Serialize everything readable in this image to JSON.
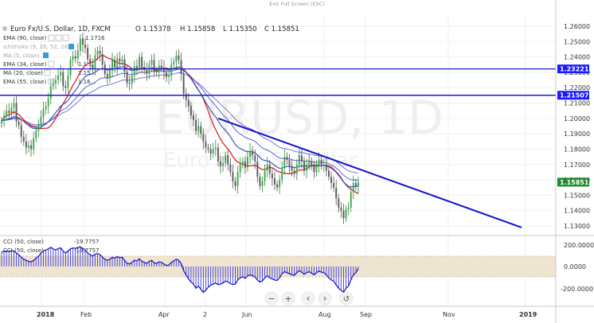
{
  "window": {
    "exit_fullscreen_label": "Exit Full Screen (ESC)"
  },
  "header": {
    "symbol": "Euro Fx/U.S. Dollar, 1D, FXCM",
    "ohlc": {
      "open": "O 1.15378",
      "high": "H 1.15858",
      "low": "L 1.15350",
      "close": "C 1.15851"
    }
  },
  "indicators": [
    {
      "label": "EMA (90, close)",
      "value": "1.1716"
    },
    {
      "label": "Ichimoku (9, 26, 52, 26)",
      "value": ""
    },
    {
      "label": "MA (5, close)",
      "value": ""
    },
    {
      "label": "EMA (34, close)",
      "value": "1.1..."
    },
    {
      "label": "MA (20, close)",
      "value": "1.15..."
    },
    {
      "label": "EMA (55, close)",
      "value": "1.16..."
    }
  ],
  "watermark": {
    "symbol": "EURUSD, 1D",
    "name": "Euro Fx/U.S. Dollar"
  },
  "price_axis": {
    "ticks": [
      "1.26000",
      "1.25000",
      "1.24000",
      "1.23000",
      "1.22000",
      "1.21000",
      "1.20000",
      "1.19000",
      "1.18000",
      "1.17000",
      "1.16000",
      "1.15000",
      "1.14000",
      "1.13000"
    ],
    "badges": [
      {
        "text": "1.23221",
        "color": "#1a1aff"
      },
      {
        "text": "1.21507",
        "color": "#1a1aff"
      },
      {
        "text": "1.15851",
        "color": "#1c8c2e"
      }
    ]
  },
  "cci_panel": {
    "legend": [
      {
        "label": "CCI (50, close)",
        "value": "-19.7757"
      },
      {
        "label": "CCI (50, close)",
        "value": "-19.7757"
      }
    ],
    "ticks": [
      "200.0000",
      "0.0000",
      "-200.0000"
    ]
  },
  "time_axis": {
    "labels": [
      "2018",
      "Feb",
      "Apr",
      "2",
      "Jun",
      "Aug",
      "Sep",
      "Nov",
      "2019"
    ]
  },
  "nav": {
    "zoom_out": "−",
    "zoom_in": "+",
    "prev": "‹",
    "next": "›",
    "reset": "↺"
  },
  "chart_data": {
    "type": "candlestick",
    "title": "Euro Fx/U.S. Dollar, 1D, FXCM",
    "ylim": [
      1.125,
      1.265
    ],
    "horizontal_lines": [
      1.23221,
      1.21507
    ],
    "trendline": {
      "from": {
        "date": "2018-04-24",
        "price": 1.2
      },
      "to": {
        "date": "2018-10-26",
        "price": 1.129
      }
    },
    "closes": [
      1.1985,
      1.202,
      1.205,
      1.2035,
      1.207,
      1.21,
      1.198,
      1.1955,
      1.188,
      1.185,
      1.181,
      1.1825,
      1.18,
      1.187,
      1.192,
      1.196,
      1.201,
      1.206,
      1.208,
      1.213,
      1.221,
      1.223,
      1.225,
      1.228,
      1.23,
      1.221,
      1.22,
      1.228,
      1.238,
      1.2405,
      1.239,
      1.244,
      1.252,
      1.248,
      1.246,
      1.2385,
      1.235,
      1.2325,
      1.241,
      1.244,
      1.242,
      1.235,
      1.229,
      1.226,
      1.231,
      1.238,
      1.233,
      1.239,
      1.237,
      1.2385,
      1.2305,
      1.223,
      1.2225,
      1.228,
      1.234,
      1.232,
      1.24,
      1.2335,
      1.2315,
      1.229,
      1.235,
      1.238,
      1.231,
      1.23,
      1.2345,
      1.233,
      1.23,
      1.227,
      1.228,
      1.235,
      1.237,
      1.241,
      1.238,
      1.229,
      1.216,
      1.212,
      1.208,
      1.202,
      1.199,
      1.192,
      1.195,
      1.19,
      1.185,
      1.181,
      1.18,
      1.177,
      1.18,
      1.181,
      1.172,
      1.169,
      1.171,
      1.176,
      1.17,
      1.165,
      1.159,
      1.156,
      1.165,
      1.17,
      1.172,
      1.168,
      1.175,
      1.179,
      1.176,
      1.172,
      1.162,
      1.156,
      1.159,
      1.166,
      1.17,
      1.164,
      1.161,
      1.157,
      1.155,
      1.16,
      1.168,
      1.175,
      1.173,
      1.169,
      1.166,
      1.164,
      1.17,
      1.176,
      1.172,
      1.166,
      1.17,
      1.172,
      1.169,
      1.165,
      1.169,
      1.173,
      1.17,
      1.17,
      1.166,
      1.162,
      1.158,
      1.155,
      1.148,
      1.142,
      1.14,
      1.135,
      1.141,
      1.142,
      1.152,
      1.158,
      1.156,
      1.1585
    ],
    "cci": [
      140,
      145,
      150,
      148,
      152,
      150,
      130,
      115,
      90,
      70,
      60,
      50,
      45,
      60,
      80,
      100,
      130,
      150,
      160,
      170,
      185,
      170,
      160,
      175,
      180,
      150,
      130,
      150,
      170,
      180,
      175,
      185,
      190,
      175,
      160,
      130,
      115,
      100,
      120,
      125,
      115,
      90,
      70,
      60,
      70,
      90,
      80,
      95,
      85,
      90,
      60,
      30,
      25,
      40,
      60,
      55,
      75,
      50,
      40,
      30,
      50,
      60,
      35,
      30,
      45,
      40,
      25,
      10,
      15,
      40,
      55,
      70,
      60,
      30,
      -40,
      -80,
      -120,
      -150,
      -170,
      -210,
      -190,
      -220,
      -250,
      -230,
      -200,
      -180,
      -170,
      -160,
      -175,
      -170,
      -160,
      -140,
      -150,
      -165,
      -175,
      -170,
      -130,
      -110,
      -100,
      -115,
      -90,
      -80,
      -90,
      -100,
      -130,
      -150,
      -140,
      -110,
      -90,
      -110,
      -120,
      -130,
      -135,
      -110,
      -70,
      -50,
      -60,
      -70,
      -80,
      -85,
      -60,
      -40,
      -55,
      -75,
      -60,
      -50,
      -65,
      -80,
      -60,
      -45,
      -55,
      -60,
      -80,
      -110,
      -130,
      -140,
      -180,
      -210,
      -230,
      -250,
      -210,
      -190,
      -130,
      -80,
      -60,
      -20
    ]
  }
}
